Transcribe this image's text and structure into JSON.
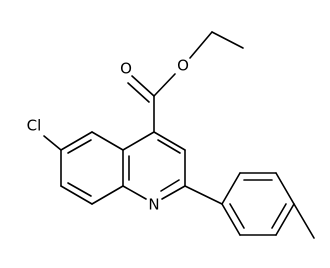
{
  "atoms": [
    "O",
    "O",
    "Cl",
    "N"
  ]
}
